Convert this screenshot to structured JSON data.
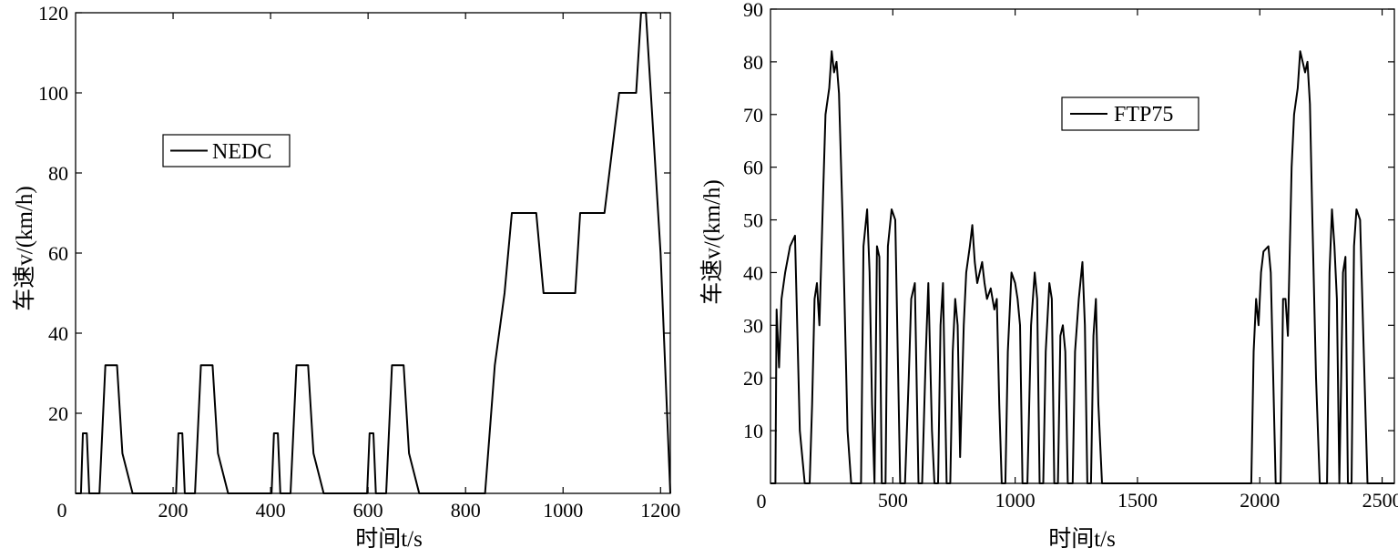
{
  "chart_data": [
    {
      "type": "line",
      "xlabel": "时间t/s",
      "ylabel": "车速v/(km/h)",
      "xlim": [
        0,
        1220
      ],
      "ylim": [
        0,
        120
      ],
      "x_ticks": [
        "0",
        "200",
        "400",
        "600",
        "800",
        "1000",
        "1200"
      ],
      "y_ticks": [
        "20",
        "40",
        "60",
        "80",
        "100",
        "120"
      ],
      "legend": "NEDC",
      "legend_position": "center-left",
      "grid": false,
      "series": [
        {
          "name": "NEDC",
          "points": [
            [
              0,
              0
            ],
            [
              11,
              0
            ],
            [
              15,
              15
            ],
            [
              23,
              15
            ],
            [
              28,
              0
            ],
            [
              49,
              0
            ],
            [
              61,
              32
            ],
            [
              85,
              32
            ],
            [
              96,
              10
            ],
            [
              117,
              0
            ],
            [
              206,
              0
            ],
            [
              211,
              15
            ],
            [
              219,
              15
            ],
            [
              224,
              0
            ],
            [
              245,
              0
            ],
            [
              257,
              32
            ],
            [
              281,
              32
            ],
            [
              292,
              10
            ],
            [
              313,
              0
            ],
            [
              402,
              0
            ],
            [
              407,
              15
            ],
            [
              415,
              15
            ],
            [
              420,
              0
            ],
            [
              441,
              0
            ],
            [
              453,
              32
            ],
            [
              477,
              32
            ],
            [
              488,
              10
            ],
            [
              509,
              0
            ],
            [
              598,
              0
            ],
            [
              603,
              15
            ],
            [
              611,
              15
            ],
            [
              616,
              0
            ],
            [
              637,
              0
            ],
            [
              649,
              32
            ],
            [
              673,
              32
            ],
            [
              684,
              10
            ],
            [
              705,
              0
            ],
            [
              840,
              0
            ],
            [
              860,
              32
            ],
            [
              880,
              50
            ],
            [
              895,
              70
            ],
            [
              945,
              70
            ],
            [
              960,
              50
            ],
            [
              1025,
              50
            ],
            [
              1035,
              70
            ],
            [
              1085,
              70
            ],
            [
              1105,
              90
            ],
            [
              1115,
              100
            ],
            [
              1150,
              100
            ],
            [
              1160,
              120
            ],
            [
              1170,
              120
            ],
            [
              1185,
              90
            ],
            [
              1200,
              60
            ],
            [
              1220,
              0
            ]
          ]
        }
      ]
    },
    {
      "type": "line",
      "xlabel": "时间t/s",
      "ylabel": "车速v/(km/h)",
      "xlim": [
        0,
        2550
      ],
      "ylim": [
        0,
        90
      ],
      "x_ticks": [
        "0",
        "500",
        "1000",
        "1500",
        "2000",
        "2500"
      ],
      "y_ticks": [
        "10",
        "20",
        "30",
        "40",
        "50",
        "60",
        "70",
        "80",
        "90"
      ],
      "legend": "FTP75",
      "legend_position": "upper-center",
      "grid": false,
      "series": [
        {
          "name": "FTP75",
          "points": [
            [
              0,
              0
            ],
            [
              20,
              0
            ],
            [
              25,
              33
            ],
            [
              35,
              22
            ],
            [
              45,
              35
            ],
            [
              60,
              40
            ],
            [
              80,
              45
            ],
            [
              100,
              47
            ],
            [
              120,
              10
            ],
            [
              140,
              0
            ],
            [
              160,
              0
            ],
            [
              170,
              15
            ],
            [
              180,
              35
            ],
            [
              190,
              38
            ],
            [
              200,
              30
            ],
            [
              215,
              55
            ],
            [
              225,
              70
            ],
            [
              240,
              75
            ],
            [
              250,
              82
            ],
            [
              260,
              78
            ],
            [
              270,
              80
            ],
            [
              280,
              74
            ],
            [
              295,
              50
            ],
            [
              315,
              10
            ],
            [
              330,
              0
            ],
            [
              370,
              0
            ],
            [
              380,
              45
            ],
            [
              395,
              52
            ],
            [
              405,
              40
            ],
            [
              415,
              15
            ],
            [
              425,
              0
            ],
            [
              435,
              45
            ],
            [
              445,
              43
            ],
            [
              455,
              0
            ],
            [
              470,
              0
            ],
            [
              480,
              45
            ],
            [
              495,
              52
            ],
            [
              510,
              50
            ],
            [
              520,
              25
            ],
            [
              530,
              0
            ],
            [
              550,
              0
            ],
            [
              565,
              20
            ],
            [
              575,
              35
            ],
            [
              590,
              38
            ],
            [
              605,
              0
            ],
            [
              620,
              0
            ],
            [
              635,
              25
            ],
            [
              645,
              38
            ],
            [
              660,
              10
            ],
            [
              670,
              0
            ],
            [
              685,
              0
            ],
            [
              695,
              30
            ],
            [
              705,
              38
            ],
            [
              720,
              0
            ],
            [
              735,
              0
            ],
            [
              745,
              25
            ],
            [
              755,
              35
            ],
            [
              765,
              30
            ],
            [
              775,
              5
            ],
            [
              790,
              30
            ],
            [
              800,
              40
            ],
            [
              815,
              45
            ],
            [
              825,
              49
            ],
            [
              835,
              42
            ],
            [
              845,
              38
            ],
            [
              855,
              40
            ],
            [
              865,
              42
            ],
            [
              875,
              38
            ],
            [
              885,
              35
            ],
            [
              900,
              37
            ],
            [
              915,
              33
            ],
            [
              925,
              35
            ],
            [
              935,
              15
            ],
            [
              945,
              0
            ],
            [
              960,
              0
            ],
            [
              970,
              25
            ],
            [
              985,
              40
            ],
            [
              1000,
              38
            ],
            [
              1010,
              35
            ],
            [
              1020,
              30
            ],
            [
              1030,
              0
            ],
            [
              1050,
              0
            ],
            [
              1065,
              30
            ],
            [
              1080,
              40
            ],
            [
              1090,
              35
            ],
            [
              1100,
              0
            ],
            [
              1115,
              0
            ],
            [
              1125,
              25
            ],
            [
              1140,
              38
            ],
            [
              1150,
              35
            ],
            [
              1160,
              0
            ],
            [
              1175,
              0
            ],
            [
              1185,
              28
            ],
            [
              1195,
              30
            ],
            [
              1205,
              25
            ],
            [
              1215,
              0
            ],
            [
              1235,
              0
            ],
            [
              1245,
              25
            ],
            [
              1260,
              35
            ],
            [
              1275,
              42
            ],
            [
              1285,
              30
            ],
            [
              1295,
              0
            ],
            [
              1310,
              0
            ],
            [
              1320,
              28
            ],
            [
              1330,
              35
            ],
            [
              1340,
              15
            ],
            [
              1355,
              0
            ],
            [
              1965,
              0
            ],
            [
              1975,
              25
            ],
            [
              1985,
              35
            ],
            [
              1995,
              30
            ],
            [
              2005,
              40
            ],
            [
              2015,
              44
            ],
            [
              2035,
              45
            ],
            [
              2045,
              40
            ],
            [
              2055,
              20
            ],
            [
              2065,
              0
            ],
            [
              2085,
              0
            ],
            [
              2095,
              35
            ],
            [
              2105,
              35
            ],
            [
              2115,
              28
            ],
            [
              2130,
              60
            ],
            [
              2140,
              70
            ],
            [
              2155,
              75
            ],
            [
              2165,
              82
            ],
            [
              2175,
              80
            ],
            [
              2185,
              78
            ],
            [
              2195,
              80
            ],
            [
              2205,
              72
            ],
            [
              2215,
              50
            ],
            [
              2230,
              20
            ],
            [
              2245,
              0
            ],
            [
              2275,
              0
            ],
            [
              2285,
              40
            ],
            [
              2295,
              52
            ],
            [
              2305,
              45
            ],
            [
              2315,
              35
            ],
            [
              2325,
              0
            ],
            [
              2340,
              40
            ],
            [
              2350,
              43
            ],
            [
              2360,
              0
            ],
            [
              2375,
              0
            ],
            [
              2385,
              45
            ],
            [
              2395,
              52
            ],
            [
              2410,
              50
            ],
            [
              2425,
              25
            ],
            [
              2440,
              0
            ],
            [
              2550,
              0
            ]
          ]
        }
      ]
    }
  ]
}
